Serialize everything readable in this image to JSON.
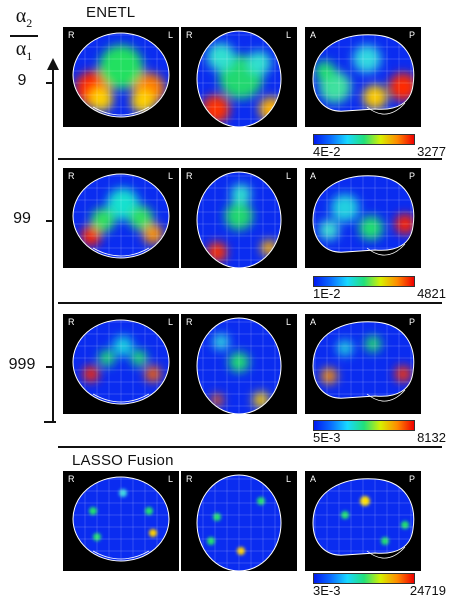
{
  "figure": {
    "ratio_numerator": "α",
    "ratio_numerator_sub": "2",
    "ratio_denominator": "α",
    "ratio_denominator_sub": "1",
    "ticks": [
      "9",
      "99",
      "999"
    ],
    "sections": [
      {
        "title": "ENETL",
        "colorbar_min": "4E-2",
        "colorbar_max": "3277",
        "views": [
          {
            "left": "R",
            "right": "L"
          },
          {
            "left": "R",
            "right": "L"
          },
          {
            "left": "A",
            "right": "P"
          }
        ]
      },
      {
        "title": "",
        "colorbar_min": "1E-2",
        "colorbar_max": "4821",
        "views": [
          {
            "left": "R",
            "right": "L"
          },
          {
            "left": "R",
            "right": "L"
          },
          {
            "left": "A",
            "right": "P"
          }
        ]
      },
      {
        "title": "",
        "colorbar_min": "5E-3",
        "colorbar_max": "8132",
        "views": [
          {
            "left": "R",
            "right": "L"
          },
          {
            "left": "R",
            "right": "L"
          },
          {
            "left": "A",
            "right": "P"
          }
        ]
      },
      {
        "title": "LASSO Fusion",
        "colorbar_min": "3E-3",
        "colorbar_max": "24719",
        "views": [
          {
            "left": "R",
            "right": "L"
          },
          {
            "left": "R",
            "right": "L"
          },
          {
            "left": "A",
            "right": "P"
          }
        ]
      }
    ],
    "colors": {
      "low": "#001af0",
      "mid": "#22e07a",
      "high": "#f00000"
    }
  }
}
